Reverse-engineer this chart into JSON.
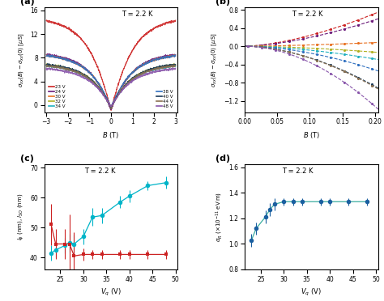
{
  "panel_a": {
    "title": "T = 2.2 K",
    "xlabel": "B (T)",
    "ylabel": "σ_{xx}(B) - σ_{xx}(0) [μS]",
    "ylim": [
      -1.2,
      16.5
    ],
    "xlim": [
      -3.1,
      3.1
    ],
    "yticks": [
      0,
      4,
      8,
      12,
      16
    ],
    "xticks": [
      -3,
      -2,
      -1,
      0,
      1,
      2,
      3
    ],
    "voltages": [
      23,
      24,
      30,
      32,
      34,
      38,
      40,
      44,
      48
    ],
    "colors": [
      "#cc2222",
      "#6b1a7a",
      "#e87020",
      "#b0b020",
      "#20b0c0",
      "#3070c0",
      "#1a3a5a",
      "#8a7050",
      "#8855aa"
    ],
    "amplitudes": [
      15.0,
      9.0,
      8.8,
      7.2,
      7.0,
      8.8,
      7.2,
      7.0,
      6.5
    ],
    "dip_depths": [
      0.9,
      0.8,
      0.5,
      0.4,
      0.3,
      0.4,
      0.4,
      0.35,
      0.3
    ],
    "widths": [
      0.6,
      0.5,
      0.45,
      0.4,
      0.38,
      0.45,
      0.42,
      0.4,
      0.38
    ],
    "legend_left": [
      "23 V",
      "24 V",
      "30 V",
      "32 V",
      "34 V"
    ],
    "legend_right": [
      "38 V",
      "40 V",
      "44 V",
      "48 V"
    ],
    "legend_colors_left": [
      "#cc2222",
      "#6b1a7a",
      "#e87020",
      "#b0b020",
      "#20b0c0"
    ],
    "legend_colors_right": [
      "#3070c0",
      "#1a3a5a",
      "#8a7050",
      "#8855aa"
    ]
  },
  "panel_b": {
    "title": "T = 2.2 K",
    "xlabel": "B (T)",
    "ylabel": "σ_{xx}(B) - σ_{xx}(0) [μS]",
    "ylim": [
      -1.45,
      0.85
    ],
    "xlim": [
      0.0,
      0.205
    ],
    "yticks": [
      -1.2,
      -0.8,
      -0.4,
      0.0,
      0.4,
      0.8
    ],
    "xticks": [
      0.0,
      0.05,
      0.1,
      0.15,
      0.2
    ],
    "colors": [
      "#cc2222",
      "#6b1a7a",
      "#e87020",
      "#b0b020",
      "#20b0c0",
      "#3070c0",
      "#1a3a5a",
      "#8a7050",
      "#8855aa"
    ],
    "curve_ends": [
      0.72,
      0.58,
      0.08,
      -0.13,
      -0.28,
      -0.52,
      -0.88,
      -0.9,
      -1.32
    ],
    "curvature": [
      1.6,
      1.6,
      1.5,
      1.7,
      1.7,
      1.8,
      1.8,
      1.8,
      1.9
    ]
  },
  "panel_c": {
    "title": "T = 2.2 K",
    "xlabel": "V_q (V)",
    "ylabel": "l_phi (nm), l_SO (nm)",
    "ylim": [
      36,
      71
    ],
    "xlim": [
      21.5,
      50.5
    ],
    "yticks": [
      40,
      50,
      60,
      70
    ],
    "xticks": [
      25,
      30,
      35,
      40,
      45,
      50
    ],
    "vq_cyan": [
      23,
      24,
      26,
      27,
      28,
      30,
      32,
      34,
      38,
      40,
      44,
      48
    ],
    "lso_cyan": [
      41.5,
      42.5,
      44.0,
      45.0,
      44.5,
      47.0,
      53.5,
      54.0,
      58.5,
      60.5,
      64.0,
      65.0
    ],
    "lso_err_cyan": [
      2.5,
      2.5,
      2.5,
      3.0,
      3.0,
      2.5,
      3.0,
      2.5,
      2.0,
      2.0,
      1.5,
      2.0
    ],
    "vq_red": [
      23,
      24,
      26,
      27,
      28,
      30,
      32,
      34,
      38,
      40,
      44,
      48
    ],
    "lphi_red": [
      51.0,
      44.5,
      44.5,
      44.5,
      40.5,
      41.0,
      41.0,
      41.0,
      41.0,
      41.0,
      41.0,
      41.0
    ],
    "lphi_err_red": [
      7.0,
      5.0,
      5.0,
      10.0,
      8.0,
      2.0,
      1.5,
      1.5,
      1.5,
      1.5,
      1.5,
      1.5
    ],
    "color_cyan": "#00b4c8",
    "color_red": "#cc2222"
  },
  "panel_d": {
    "title": "T = 2.2 K",
    "xlabel": "V_q (V)",
    "ylabel": "α_R (×10⁻¹¹ eV m)",
    "ylim": [
      0.82,
      1.62
    ],
    "xlim": [
      21.5,
      50.5
    ],
    "yticks": [
      0.8,
      1.0,
      1.2,
      1.4,
      1.6
    ],
    "xticks": [
      25,
      30,
      35,
      40,
      45,
      50
    ],
    "vq": [
      23,
      24,
      26,
      27,
      28,
      30,
      32,
      34,
      38,
      40,
      44,
      48
    ],
    "alpha": [
      1.03,
      1.12,
      1.21,
      1.27,
      1.31,
      1.33,
      1.33,
      1.33,
      1.33,
      1.33,
      1.33,
      1.33
    ],
    "alpha_err": [
      0.05,
      0.05,
      0.05,
      0.05,
      0.05,
      0.03,
      0.03,
      0.03,
      0.03,
      0.03,
      0.03,
      0.03
    ],
    "dot_color": "#1a5fa0",
    "line_color": "#3aada0"
  }
}
